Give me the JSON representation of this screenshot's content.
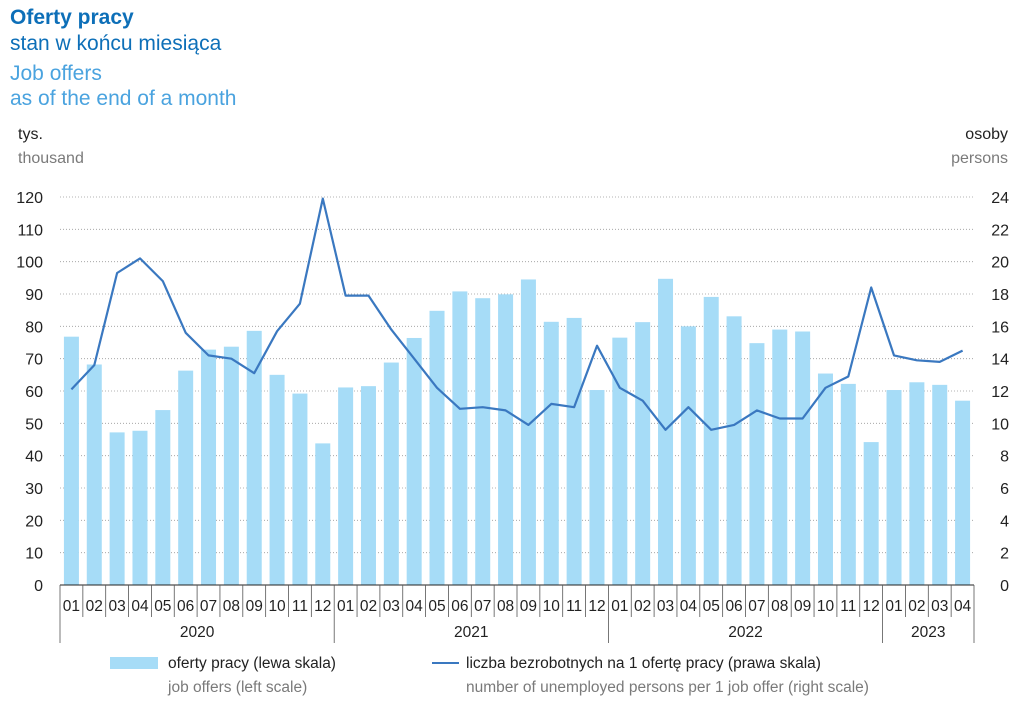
{
  "header": {
    "title_pl": "Oferty pracy",
    "subtitle_pl": "stan w końcu miesiąca",
    "title_en": "Job offers",
    "subtitle_en": "as of the end of a month"
  },
  "units": {
    "left_pl": "tys.",
    "left_en": "thousand",
    "right_pl": "osoby",
    "right_en": "persons"
  },
  "legend": {
    "bars_pl": "oferty pracy (lewa skala)",
    "bars_en": "job offers (left scale)",
    "line_pl": "liczba bezrobotnych na 1 ofertę pracy (prawa skala)",
    "line_en": "number of unemployed persons per 1 job offer (right scale)"
  },
  "colors": {
    "bar": "#a6dcf7",
    "line": "#3a78c0",
    "title_dark": "#0d6fb8",
    "title_light": "#4aa3df"
  },
  "chart_data": {
    "type": "bar",
    "categories": [
      "01",
      "02",
      "03",
      "04",
      "05",
      "06",
      "07",
      "08",
      "09",
      "10",
      "11",
      "12",
      "01",
      "02",
      "03",
      "04",
      "05",
      "06",
      "07",
      "08",
      "09",
      "10",
      "11",
      "12",
      "01",
      "02",
      "03",
      "04",
      "05",
      "06",
      "07",
      "08",
      "09",
      "10",
      "11",
      "12",
      "01",
      "02",
      "03",
      "04"
    ],
    "years": [
      {
        "label": "2020",
        "start": 0,
        "end": 11
      },
      {
        "label": "2021",
        "start": 12,
        "end": 23
      },
      {
        "label": "2022",
        "start": 24,
        "end": 35
      },
      {
        "label": "2023",
        "start": 36,
        "end": 39
      }
    ],
    "series": [
      {
        "name": "oferty pracy (lewa skala)",
        "type": "bar",
        "axis": "left",
        "values": [
          76.8,
          68.2,
          47.2,
          47.7,
          54.1,
          66.3,
          72.8,
          73.7,
          78.6,
          65.0,
          59.2,
          43.8,
          61.1,
          61.5,
          68.8,
          76.4,
          84.8,
          90.8,
          88.7,
          89.9,
          94.5,
          81.4,
          82.6,
          60.3,
          76.5,
          81.3,
          94.7,
          80.0,
          89.1,
          83.1,
          74.8,
          79.0,
          78.4,
          65.4,
          62.2,
          44.2,
          60.3,
          62.7,
          61.9,
          57.0
        ]
      },
      {
        "name": "liczba bezrobotnych na 1 ofertę pracy (prawa skala)",
        "type": "line",
        "axis": "right",
        "values": [
          12.1,
          13.6,
          19.3,
          20.2,
          18.8,
          15.6,
          14.2,
          14.0,
          13.1,
          15.7,
          17.4,
          23.9,
          17.9,
          17.9,
          15.8,
          14.0,
          12.2,
          10.9,
          11.0,
          10.8,
          9.9,
          11.2,
          11.0,
          14.8,
          12.2,
          11.4,
          9.6,
          11.0,
          9.6,
          9.9,
          10.8,
          10.3,
          10.3,
          12.2,
          12.9,
          18.4,
          14.2,
          13.9,
          13.8,
          14.5
        ]
      }
    ],
    "y_left": {
      "min": 0,
      "max": 120,
      "ticks": [
        0,
        10,
        20,
        30,
        40,
        50,
        60,
        70,
        80,
        90,
        100,
        110,
        120
      ]
    },
    "y_right": {
      "min": 0,
      "max": 24,
      "ticks": [
        0,
        2,
        4,
        6,
        8,
        10,
        12,
        14,
        16,
        18,
        20,
        22,
        24
      ]
    },
    "grid": true,
    "legend_position": "bottom"
  }
}
